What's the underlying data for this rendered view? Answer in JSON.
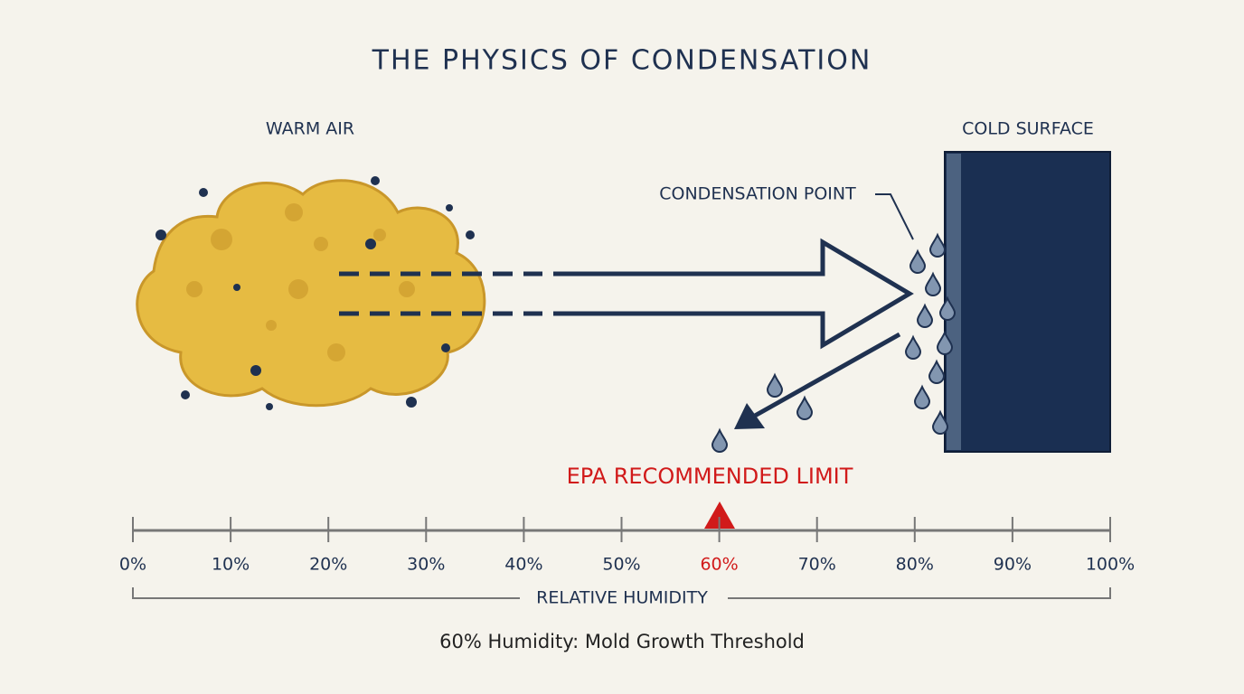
{
  "title": "THE PHYSICS OF CONDENSATION",
  "warm_air": {
    "label": "WARM AIR"
  },
  "cold_surface": {
    "label": "COLD SURFACE"
  },
  "condensation": {
    "label": "CONDENSATION POINT"
  },
  "scale": {
    "limit_label": "EPA RECOMMENDED LIMIT",
    "ticks": [
      "0%",
      "10%",
      "20%",
      "30%",
      "40%",
      "50%",
      "60%",
      "70%",
      "80%",
      "90%",
      "100%"
    ],
    "limit_tick": 6,
    "axis_label": "RELATIVE HUMIDITY"
  },
  "caption": "60% Humidity: Mold Growth Threshold"
}
